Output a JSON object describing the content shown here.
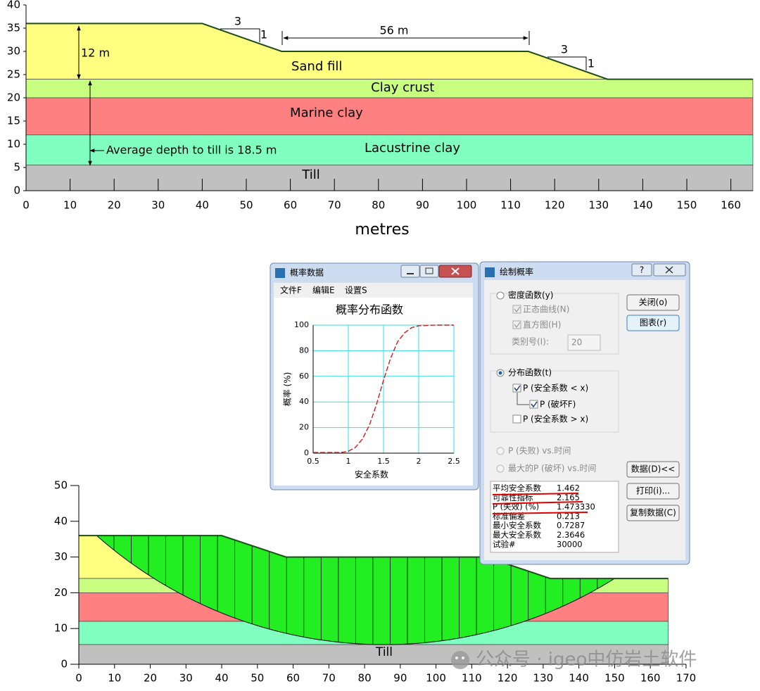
{
  "top_section": {
    "ground": {
      "x": [
        0,
        40,
        58,
        114,
        132,
        165
      ],
      "y": [
        36,
        36,
        30,
        30,
        24,
        24
      ]
    },
    "layers": [
      {
        "name": "Sand fill",
        "color": "#ffff80",
        "bottom": 24
      },
      {
        "name": "Clay crust",
        "color": "#c8ff80",
        "top": 24,
        "bottom": 20
      },
      {
        "name": "Marine clay",
        "color": "#ff8080",
        "top": 20,
        "bottom": 12
      },
      {
        "name": "Lacustrine clay",
        "color": "#80ffc0",
        "top": 12,
        "bottom": 5.5
      },
      {
        "name": "Till",
        "color": "#c0c0c0",
        "top": 5.5,
        "bottom": 0
      }
    ],
    "xlim": [
      0,
      165
    ],
    "xticks": [
      0,
      10,
      20,
      30,
      40,
      50,
      60,
      70,
      80,
      90,
      100,
      110,
      120,
      130,
      140,
      150,
      160
    ],
    "ylim": [
      0,
      40
    ],
    "yticks": [
      0,
      5,
      10,
      15,
      20,
      25,
      30,
      35,
      40
    ],
    "x_label": "metres",
    "annotations": {
      "left_slope_run": "3",
      "left_slope_rise": "1",
      "crest_width": "56 m",
      "right_slope_run": "3",
      "right_slope_rise": "1",
      "fill_height": "12 m",
      "till_depth": "Average depth to till is 18.5 m"
    }
  },
  "probability_window": {
    "title": "概率数据",
    "menu": [
      "文件F",
      "编辑E",
      "设置S"
    ],
    "chart_data": {
      "type": "line",
      "title": "概率分布函数",
      "x_label": "安全系数",
      "y_label": "概率 (%)",
      "xlim": [
        0.5,
        2.5
      ],
      "xticks": [
        0.5,
        1,
        1.5,
        2,
        2.5
      ],
      "ylim": [
        0,
        100
      ],
      "yticks": [
        0,
        20,
        40,
        60,
        80,
        100
      ],
      "grid": true,
      "color": "#cc2222",
      "x": [
        0.5,
        0.9,
        1,
        1.1,
        1.2,
        1.3,
        1.4,
        1.5,
        1.6,
        1.7,
        1.8,
        1.9,
        2,
        2.25,
        2.5
      ],
      "y": [
        0.5,
        0.5,
        1.5,
        4.5,
        11,
        22,
        38,
        57,
        74,
        87,
        94,
        98,
        99.5,
        100,
        100
      ]
    }
  },
  "plot_dialog": {
    "title": "绘制概率",
    "help": "?",
    "density": {
      "label": "密度函数(y)",
      "normal_curve": "正态曲线(N)",
      "histogram": "直方图(H)",
      "class_count_label": "类别号(I):",
      "class_count": 20
    },
    "distribution": {
      "label": "分布函数(t)",
      "p_less": "P (安全系数 < x)",
      "p_fail": "P (破坏F)",
      "p_greater": "P (安全系数 > x)"
    },
    "p_fail_vs_time": "P (失败) vs.时间",
    "max_p_vs_time": "最大的P (破坏) vs.时间",
    "buttons": {
      "close": "关闭(o)",
      "chart": "图表(r)",
      "data": "数据(D)<<",
      "print": "打印(i)...",
      "copy": "复制数据(C)"
    },
    "statistics": [
      [
        "平均安全系数",
        "1.462"
      ],
      [
        "可靠性指标",
        "2.165"
      ],
      [
        "P (失效) (%)",
        "1.473330"
      ],
      [
        "标准偏差",
        "0.213"
      ],
      [
        "最小安全系数",
        "0.7287"
      ],
      [
        "最大安全系数",
        "2.3646"
      ],
      [
        "试验#",
        "30000"
      ]
    ]
  },
  "bottom_section": {
    "ground": {
      "x": [
        0,
        40,
        58,
        114,
        132,
        165
      ],
      "y": [
        36,
        36,
        30,
        30,
        24,
        24
      ]
    },
    "layers": [
      {
        "color": "#ffff80",
        "bottom": 24
      },
      {
        "color": "#c8ff80",
        "top": 24,
        "bottom": 20
      },
      {
        "color": "#ff8080",
        "top": 20,
        "bottom": 12
      },
      {
        "color": "#80ffc0",
        "top": 12,
        "bottom": 5.5
      },
      {
        "color": "#c0c0c0",
        "top": 5.5,
        "bottom": 0
      }
    ],
    "till_label": "Till",
    "slip_circle": {
      "center_x": 85.53,
      "center_y": 127.07,
      "radius": 121.57
    },
    "slices": 30,
    "xlim": [
      0,
      170
    ],
    "xticks": [
      0,
      10,
      20,
      30,
      40,
      50,
      60,
      70,
      80,
      90,
      100,
      110,
      120,
      130,
      140,
      150,
      160,
      170
    ],
    "ylim": [
      0,
      50
    ],
    "yticks": [
      0,
      10,
      20,
      30,
      40,
      50
    ]
  },
  "watermark": "公众号 · igeo中仿岩土软件"
}
